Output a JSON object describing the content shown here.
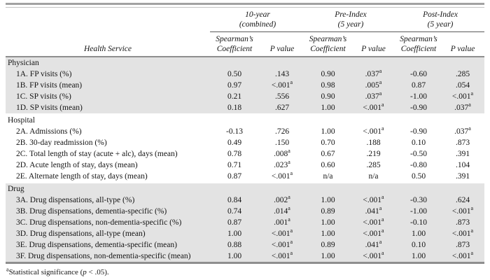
{
  "header": {
    "health_service": "Health Service",
    "groups": [
      {
        "line1": "10-year",
        "line2": "(combined)"
      },
      {
        "line1": "Pre-Index",
        "line2": "(5 year)"
      },
      {
        "line1": "Post-Index",
        "line2": "(5 year)"
      }
    ],
    "coefficient_line1": "Spearman’s",
    "coefficient_line2": "Coefficient",
    "p_value": "P value"
  },
  "sections": [
    {
      "name": "Physician",
      "shaded": true,
      "rows": [
        {
          "label": "1A. FP visits (%)",
          "values": [
            "0.50",
            ".143",
            "0.90",
            ".037^a",
            "-0.60",
            ".285"
          ]
        },
        {
          "label": "1B. FP visits (mean)",
          "values": [
            "0.97",
            "<.001^a",
            "0.98",
            ".005^a",
            "0.87",
            ".054"
          ]
        },
        {
          "label": "1C. SP visits (%)",
          "values": [
            "0.21",
            ".556",
            "0.90",
            ".037^a",
            "-1.00",
            "<.001^a"
          ]
        },
        {
          "label": "1D. SP visits (mean)",
          "values": [
            "0.18",
            ".627",
            "1.00",
            "<.001^a",
            "-0.90",
            ".037^a"
          ]
        }
      ]
    },
    {
      "name": "Hospital",
      "shaded": false,
      "rows": [
        {
          "label": "2A. Admissions (%)",
          "values": [
            "-0.13",
            ".726",
            "1.00",
            "<.001^a",
            "-0.90",
            ".037^a"
          ]
        },
        {
          "label": "2B. 30-day readmission (%)",
          "values": [
            "0.49",
            ".150",
            "0.70",
            ".188",
            "0.10",
            ".873"
          ]
        },
        {
          "label": "2C. Total length of stay (acute + alc), days (mean)",
          "values": [
            "0.78",
            ".008^a",
            "0.67",
            ".219",
            "-0.50",
            ".391"
          ]
        },
        {
          "label": "2D. Acute length of stay, days (mean)",
          "values": [
            "0.71",
            ".023^a",
            "0.60",
            ".285",
            "-0.80",
            ".104"
          ]
        },
        {
          "label": "2E. Alternate length of stay, days (mean)",
          "values": [
            "0.87",
            "<.001^a",
            "n/a",
            "n/a",
            "0.50",
            ".391"
          ]
        }
      ]
    },
    {
      "name": "Drug",
      "shaded": true,
      "rows": [
        {
          "label": "3A. Drug dispensations, all-type (%)",
          "values": [
            "0.84",
            ".002^a",
            "1.00",
            "<.001^a",
            "-0.30",
            ".624"
          ]
        },
        {
          "label": "3B. Drug dispensations, dementia-specific (%)",
          "values": [
            "0.74",
            ".014^a",
            "0.89",
            ".041^a",
            "-1.00",
            "<.001^a"
          ]
        },
        {
          "label": "3C. Drug dispensations, non-dementia-specific (%)",
          "values": [
            "0.87",
            ".001^a",
            "1.00",
            "<.001^a",
            "-0.10",
            ".873"
          ]
        },
        {
          "label": "3D. Drug dispensations, all-type (mean)",
          "values": [
            "1.00",
            "<.001^a",
            "1.00",
            "<.001^a",
            "1.00",
            "<.001^a"
          ]
        },
        {
          "label": "3E. Drug dispensations, dementia-specific (mean)",
          "values": [
            "0.88",
            "<.001^a",
            "0.89",
            ".041^a",
            "0.10",
            ".873"
          ]
        },
        {
          "label": "3F. Drug dispensations, non-dementia-specific (mean)",
          "values": [
            "1.00",
            "<.001^a",
            "1.00",
            "<.001^a",
            "1.00",
            "<.001^a"
          ]
        }
      ]
    }
  ],
  "footnote": {
    "marker": "a",
    "text_pre": "Statistical significance (",
    "italic_p": "p",
    "text_post": " < .05)."
  }
}
